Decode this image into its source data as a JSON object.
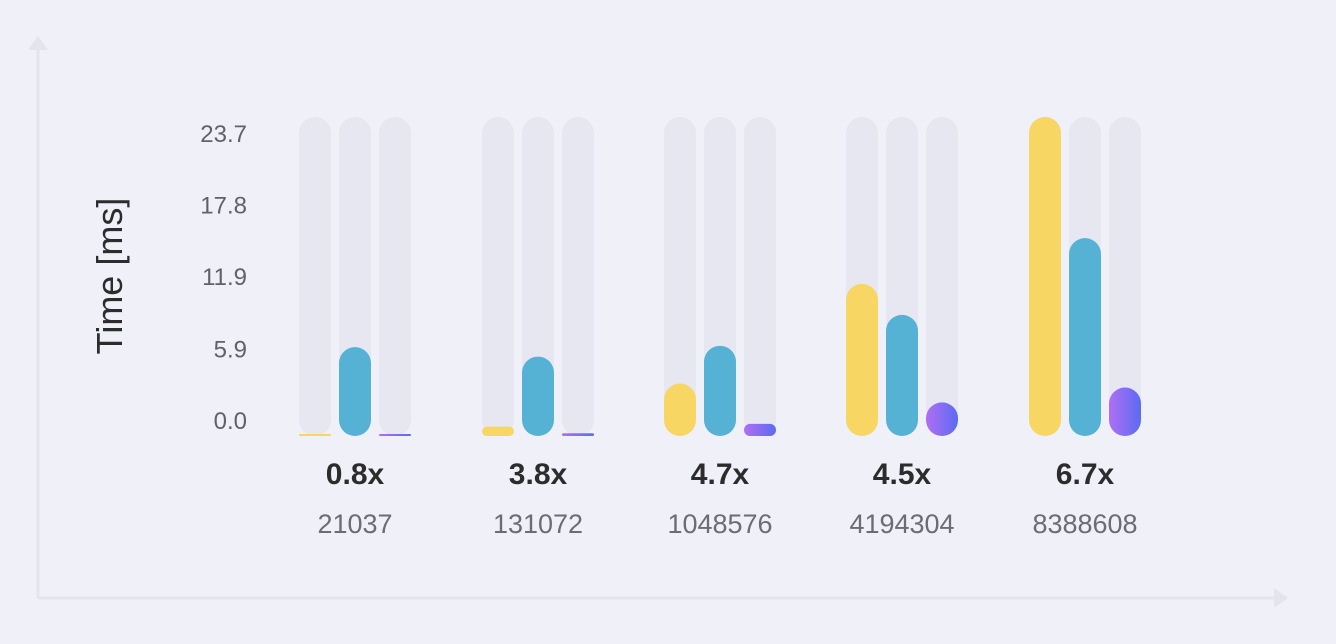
{
  "chart_data": {
    "type": "bar",
    "ylabel": "Time [ms]",
    "xlabel": "",
    "ylim": [
      0,
      23.7
    ],
    "yticks": [
      "0.0",
      "5.9",
      "11.9",
      "17.8",
      "23.7"
    ],
    "categories": [
      "21037",
      "131072",
      "1048576",
      "4194304",
      "8388608"
    ],
    "speedups": [
      "0.8x",
      "3.8x",
      "4.7x",
      "4.5x",
      "6.7x"
    ],
    "series": [
      {
        "values": [
          0.05,
          0.7,
          3.9,
          11.3,
          23.7
        ],
        "color": "#f8d664"
      },
      {
        "values": [
          6.6,
          5.9,
          6.7,
          9.0,
          14.7
        ],
        "color": "#55b2d4"
      },
      {
        "values": [
          0.12,
          0.2,
          0.9,
          2.5,
          3.6
        ],
        "color_start": "#b06ef2",
        "color_end": "#5a6cf2"
      }
    ],
    "track_color": "#e6e7f1",
    "grid": false,
    "legend": "none"
  }
}
